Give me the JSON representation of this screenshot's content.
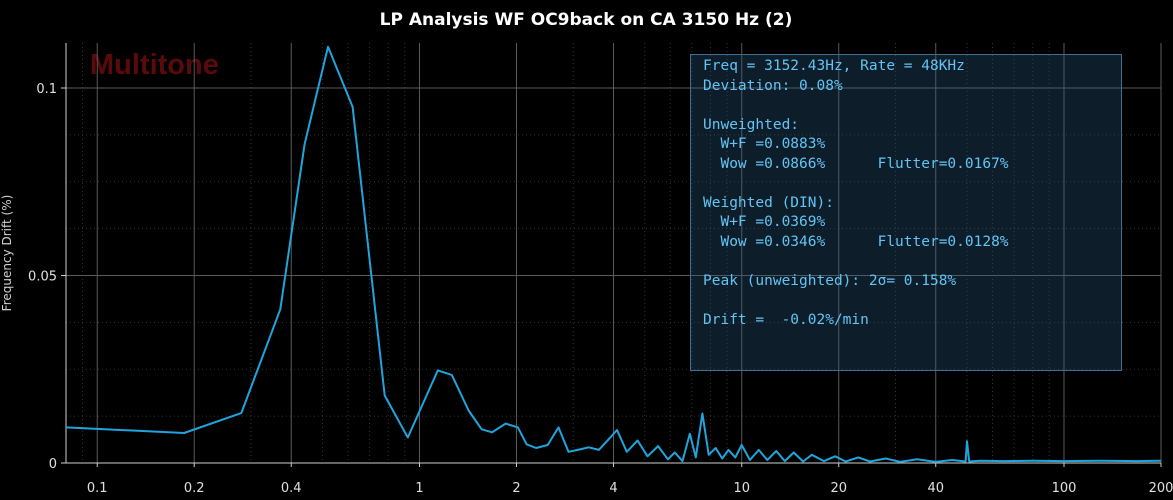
{
  "chart_data": {
    "type": "line",
    "title": "LP Analysis  WF OC9back on CA 3150 Hz (2)",
    "watermark": "Multitone",
    "xlabel": "",
    "ylabel": "Frequency Drift (%)",
    "xscale": "log",
    "xlim": [
      0.08,
      200
    ],
    "ylim": [
      0,
      0.112
    ],
    "x_ticks": [
      0.1,
      0.2,
      0.4,
      1,
      2,
      4,
      10,
      20,
      40,
      100,
      200
    ],
    "x_tick_labels": [
      "0.1",
      "0.2",
      "0.4",
      "1",
      "2",
      "4",
      "10",
      "20",
      "40",
      "100",
      "200"
    ],
    "y_ticks": [
      0,
      0.05,
      0.1
    ],
    "y_tick_labels": [
      "0",
      "0.05",
      "0.1"
    ],
    "grid": true,
    "line_color": "#1fa5dd",
    "series": [
      {
        "name": "",
        "x": [
          0.08,
          0.186,
          0.28,
          0.37,
          0.44,
          0.52,
          0.62,
          0.78,
          0.92,
          1.14,
          1.26,
          1.42,
          1.56,
          1.68,
          1.85,
          2.02,
          2.15,
          2.3,
          2.5,
          2.7,
          2.9,
          3.1,
          3.35,
          3.6,
          3.85,
          4.1,
          4.4,
          4.75,
          5.1,
          5.5,
          5.9,
          6.2,
          6.55,
          6.9,
          7.2,
          7.55,
          7.9,
          8.3,
          8.7,
          9.1,
          9.55,
          10.0,
          10.6,
          11.3,
          12.0,
          12.8,
          13.6,
          14.5,
          15.5,
          16.5,
          18.0,
          19.5,
          21.0,
          23.0,
          25.0,
          28.0,
          31.0,
          35.0,
          40.0,
          45.0,
          49.5,
          50.0,
          50.8,
          55.0,
          65.0,
          80.0,
          100.0,
          130.0,
          170.0,
          200.0
        ],
        "y": [
          0.0095,
          0.008,
          0.0133,
          0.041,
          0.085,
          0.111,
          0.095,
          0.018,
          0.0068,
          0.0247,
          0.0235,
          0.014,
          0.009,
          0.0082,
          0.0105,
          0.0095,
          0.005,
          0.004,
          0.0048,
          0.0095,
          0.003,
          0.0035,
          0.0042,
          0.0035,
          0.0062,
          0.0088,
          0.003,
          0.006,
          0.0018,
          0.0045,
          0.001,
          0.0028,
          0.0005,
          0.0078,
          0.0015,
          0.0132,
          0.0022,
          0.004,
          0.0012,
          0.0035,
          0.0015,
          0.0048,
          0.0008,
          0.0035,
          0.0008,
          0.0032,
          0.0005,
          0.0028,
          0.0004,
          0.0022,
          0.0005,
          0.0018,
          0.0004,
          0.0015,
          0.0004,
          0.0012,
          0.0003,
          0.001,
          0.0003,
          0.0008,
          0.0004,
          0.0058,
          0.0004,
          0.0006,
          0.0005,
          0.0006,
          0.0005,
          0.0006,
          0.0005,
          0.0006
        ]
      }
    ]
  },
  "info": {
    "lines": [
      "Freq = 3152.43Hz, Rate = 48KHz",
      "Deviation: 0.08%",
      "",
      "Unweighted:",
      "  W+F =0.0883%",
      "  Wow =0.0866%      Flutter=0.0167%",
      "",
      "Weighted (DIN):",
      "  W+F =0.0369%",
      "  Wow =0.0346%      Flutter=0.0128%",
      "",
      "Peak (unweighted): 2σ= 0.158%",
      "",
      "Drift =  -0.02%/min"
    ]
  }
}
